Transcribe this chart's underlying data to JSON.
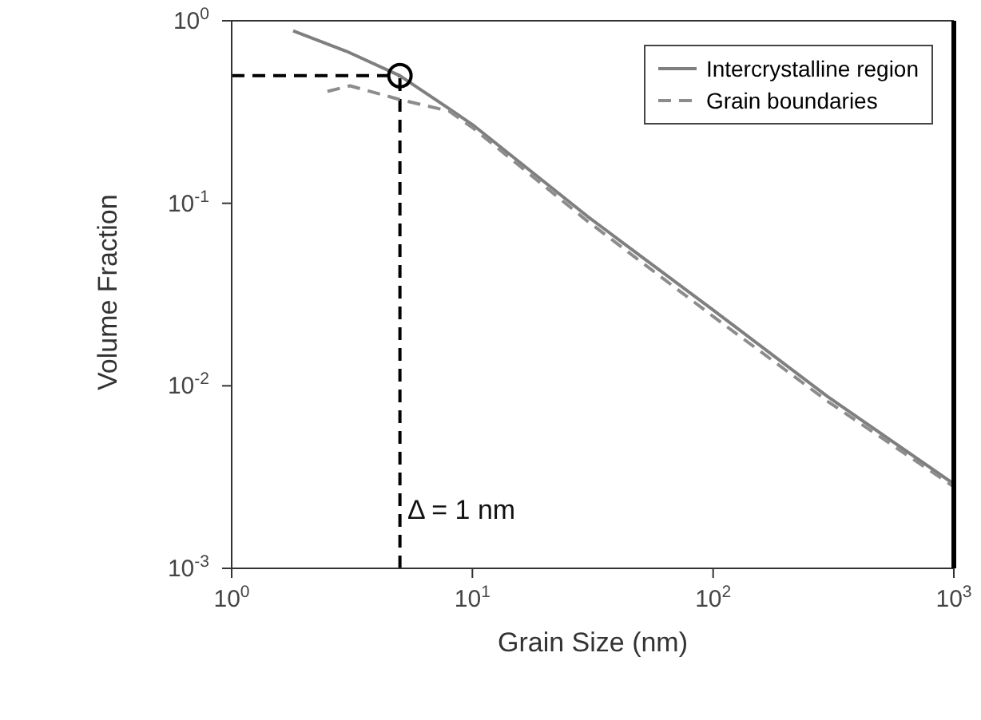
{
  "chart_data": {
    "type": "line",
    "xlabel": "Grain Size (nm)",
    "ylabel": "Volume Fraction",
    "log": "xy",
    "xlim": [
      1,
      1000
    ],
    "ylim": [
      0.001,
      1
    ],
    "xticks": [
      {
        "value": 1,
        "label": "10$^{0}$"
      },
      {
        "value": 10,
        "label": "10$^{1}$"
      },
      {
        "value": 100,
        "label": "10$^{2}$"
      },
      {
        "value": 1000,
        "label": "10$^{3}$"
      }
    ],
    "yticks": [
      {
        "value": 0.001,
        "label": "10$^{-3}$"
      },
      {
        "value": 0.01,
        "label": "10$^{-2}$"
      },
      {
        "value": 0.1,
        "label": "10$^{-1}$"
      },
      {
        "value": 1,
        "label": "10$^{0}$"
      }
    ],
    "grid": false,
    "legend": "top right",
    "series": [
      {
        "name": "Intercrystalline region",
        "color": "#7f7f7f",
        "line_style": "solid",
        "x": [
          1.8,
          3,
          5,
          8,
          10,
          30,
          100,
          300,
          1000
        ],
        "values": [
          0.88,
          0.68,
          0.5,
          0.33,
          0.27,
          0.085,
          0.026,
          0.0087,
          0.0029
        ]
      },
      {
        "name": "Grain boundaries",
        "color": "#8c8c8c",
        "line_style": "dashed",
        "x": [
          2.5,
          3.1,
          5,
          8,
          10,
          30,
          100,
          300,
          1000
        ],
        "values": [
          0.41,
          0.44,
          0.37,
          0.32,
          0.26,
          0.08,
          0.024,
          0.0082,
          0.0028
        ]
      },
      {
        "type": "scatter",
        "color": "#000000",
        "marker": "circle",
        "x": [
          5
        ],
        "values": [
          0.5
        ]
      }
    ],
    "ref_lines": [
      {
        "axis": "y",
        "value": 0.5,
        "color": "#000000",
        "line_style": "dashed"
      },
      {
        "axis": "x",
        "value": 5,
        "color": "#000000",
        "line_style": "dashed"
      }
    ],
    "annotations": [
      "Δ = 1 nm"
    ]
  }
}
